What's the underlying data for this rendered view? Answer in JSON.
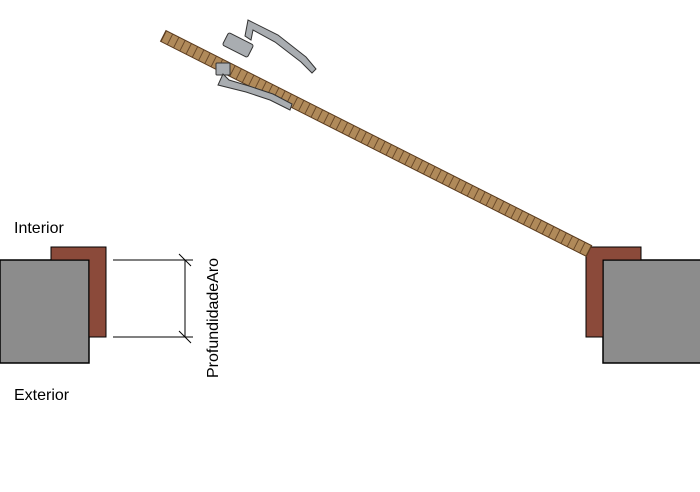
{
  "labels": {
    "interior": "Interior",
    "exterior": "Exterior",
    "dimension": "ProfundidadeAro"
  },
  "colors": {
    "wall_fill": "#8c8c8c",
    "frame_fill": "#8b4a3a",
    "door_fill": "#b08a5a",
    "hatch": "#5a3b1e",
    "handle": "#a9adb1",
    "line": "#000000"
  },
  "icons": {
    "door_handle": "lever-handle-icon"
  }
}
